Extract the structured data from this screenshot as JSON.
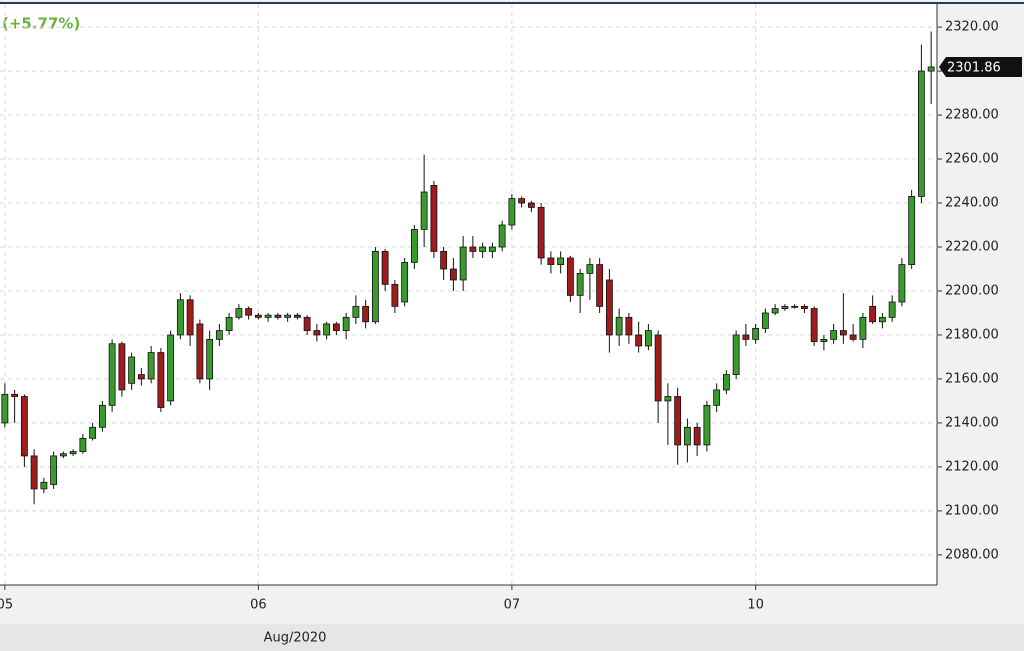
{
  "chart_data": {
    "type": "candlestick",
    "subtitle": "(+5.77%)",
    "x_label": "Aug/2020",
    "last_price": 2301.86,
    "up_color": "#3a9a2e",
    "down_color": "#9e1c1c",
    "grid": true,
    "ylim": [
      2066.3,
      2330.5
    ],
    "yticks": [
      {
        "value": 2080,
        "label": "2080.00"
      },
      {
        "value": 2100,
        "label": "2100.00"
      },
      {
        "value": 2120,
        "label": "2120.00"
      },
      {
        "value": 2140,
        "label": "2140.00"
      },
      {
        "value": 2160,
        "label": "2160.00"
      },
      {
        "value": 2180,
        "label": "2180.00"
      },
      {
        "value": 2200,
        "label": "2200.00"
      },
      {
        "value": 2220,
        "label": "2220.00"
      },
      {
        "value": 2240,
        "label": "2240.00"
      },
      {
        "value": 2260,
        "label": "2260.00"
      },
      {
        "value": 2280,
        "label": "2280.00"
      },
      {
        "value": 2300,
        "label": "2300.00"
      },
      {
        "value": 2320,
        "label": "2320.00"
      }
    ],
    "xlim": [
      -0.5,
      95.6
    ],
    "xticks": [
      {
        "value": 0,
        "label": "05"
      },
      {
        "value": 26,
        "label": "06"
      },
      {
        "value": 52,
        "label": "07"
      },
      {
        "value": 77,
        "label": "10"
      }
    ],
    "x": [
      0,
      1,
      2,
      3,
      4,
      5,
      6,
      7,
      8,
      9,
      10,
      11,
      12,
      13,
      14,
      15,
      16,
      17,
      18,
      19,
      20,
      21,
      22,
      23,
      24,
      25,
      26,
      27,
      28,
      29,
      30,
      31,
      32,
      33,
      34,
      35,
      36,
      37,
      38,
      39,
      40,
      41,
      42,
      43,
      44,
      45,
      46,
      47,
      48,
      49,
      50,
      51,
      52,
      53,
      54,
      55,
      56,
      57,
      58,
      59,
      60,
      61,
      62,
      63,
      64,
      65,
      66,
      67,
      68,
      69,
      70,
      71,
      72,
      73,
      74,
      75,
      76,
      77,
      78,
      79,
      80,
      81,
      82,
      83,
      84,
      85,
      86,
      87,
      88,
      89,
      90,
      91,
      92,
      93,
      94,
      95
    ],
    "open": [
      2140,
      2153,
      2152,
      2125,
      2110,
      2112,
      2125,
      2126,
      2127,
      2133,
      2138,
      2148,
      2176,
      2158,
      2162,
      2160,
      2172,
      2150,
      2180,
      2196,
      2185,
      2160,
      2178,
      2182,
      2188,
      2192,
      2189,
      2188,
      2189,
      2188,
      2189,
      2188,
      2182,
      2180,
      2185,
      2182,
      2188,
      2193,
      2186,
      2218,
      2203,
      2195,
      2213,
      2228,
      2248,
      2218,
      2210,
      2205,
      2220,
      2218,
      2218,
      2220,
      2230,
      2242,
      2240,
      2238,
      2215,
      2212,
      2215,
      2198,
      2208,
      2212,
      2205,
      2180,
      2188,
      2180,
      2175,
      2180,
      2150,
      2152,
      2130,
      2138,
      2130,
      2148,
      2155,
      2162,
      2180,
      2178,
      2183,
      2190,
      2192,
      2193,
      2193,
      2192,
      2177,
      2178,
      2182,
      2180,
      2178,
      2193,
      2186,
      2188,
      2195,
      2212,
      2243,
      2300
    ],
    "high": [
      2158,
      2155,
      2153,
      2128,
      2115,
      2127,
      2127,
      2128,
      2135,
      2140,
      2150,
      2178,
      2177,
      2172,
      2165,
      2175,
      2174,
      2182,
      2199,
      2198,
      2187,
      2182,
      2185,
      2190,
      2194,
      2193,
      2190,
      2190,
      2190,
      2190,
      2190,
      2189,
      2185,
      2186,
      2186,
      2190,
      2198,
      2196,
      2220,
      2219,
      2205,
      2215,
      2230,
      2262,
      2250,
      2220,
      2215,
      2225,
      2225,
      2222,
      2222,
      2232,
      2244,
      2243,
      2241,
      2240,
      2218,
      2218,
      2216,
      2210,
      2215,
      2215,
      2210,
      2192,
      2190,
      2186,
      2185,
      2182,
      2158,
      2156,
      2142,
      2140,
      2150,
      2158,
      2164,
      2182,
      2185,
      2185,
      2192,
      2194,
      2194,
      2194,
      2194,
      2193,
      2180,
      2185,
      2199,
      2185,
      2190,
      2198,
      2190,
      2198,
      2215,
      2246,
      2312,
      2318
    ],
    "low": [
      2138,
      2140,
      2120,
      2103,
      2108,
      2110,
      2124,
      2125,
      2126,
      2132,
      2136,
      2145,
      2152,
      2155,
      2157,
      2158,
      2145,
      2148,
      2178,
      2175,
      2158,
      2155,
      2175,
      2180,
      2187,
      2187,
      2187,
      2186,
      2187,
      2186,
      2187,
      2180,
      2177,
      2178,
      2180,
      2178,
      2185,
      2183,
      2185,
      2200,
      2190,
      2193,
      2210,
      2220,
      2215,
      2205,
      2200,
      2200,
      2215,
      2215,
      2215,
      2218,
      2228,
      2238,
      2236,
      2212,
      2208,
      2208,
      2195,
      2190,
      2196,
      2190,
      2172,
      2175,
      2176,
      2172,
      2173,
      2140,
      2130,
      2121,
      2122,
      2125,
      2127,
      2145,
      2153,
      2160,
      2175,
      2176,
      2181,
      2189,
      2191,
      2192,
      2190,
      2175,
      2173,
      2176,
      2176,
      2177,
      2174,
      2185,
      2183,
      2186,
      2193,
      2210,
      2240,
      2285
    ],
    "close": [
      2153,
      2152,
      2125,
      2110,
      2113,
      2125,
      2126,
      2127,
      2133,
      2138,
      2148,
      2176,
      2155,
      2170,
      2160,
      2172,
      2147,
      2180,
      2196,
      2180,
      2160,
      2178,
      2182,
      2188,
      2192,
      2189,
      2188,
      2189,
      2188,
      2189,
      2188,
      2182,
      2180,
      2185,
      2182,
      2188,
      2193,
      2186,
      2218,
      2203,
      2193,
      2213,
      2228,
      2245,
      2218,
      2210,
      2205,
      2220,
      2218,
      2220,
      2220,
      2230,
      2242,
      2240,
      2238,
      2215,
      2212,
      2215,
      2198,
      2208,
      2212,
      2193,
      2180,
      2188,
      2180,
      2175,
      2182,
      2150,
      2152,
      2130,
      2138,
      2130,
      2148,
      2155,
      2162,
      2180,
      2178,
      2183,
      2190,
      2192,
      2193,
      2193,
      2192,
      2177,
      2178,
      2182,
      2180,
      2178,
      2188,
      2186,
      2188,
      2195,
      2212,
      2243,
      2300,
      2301.86
    ]
  }
}
